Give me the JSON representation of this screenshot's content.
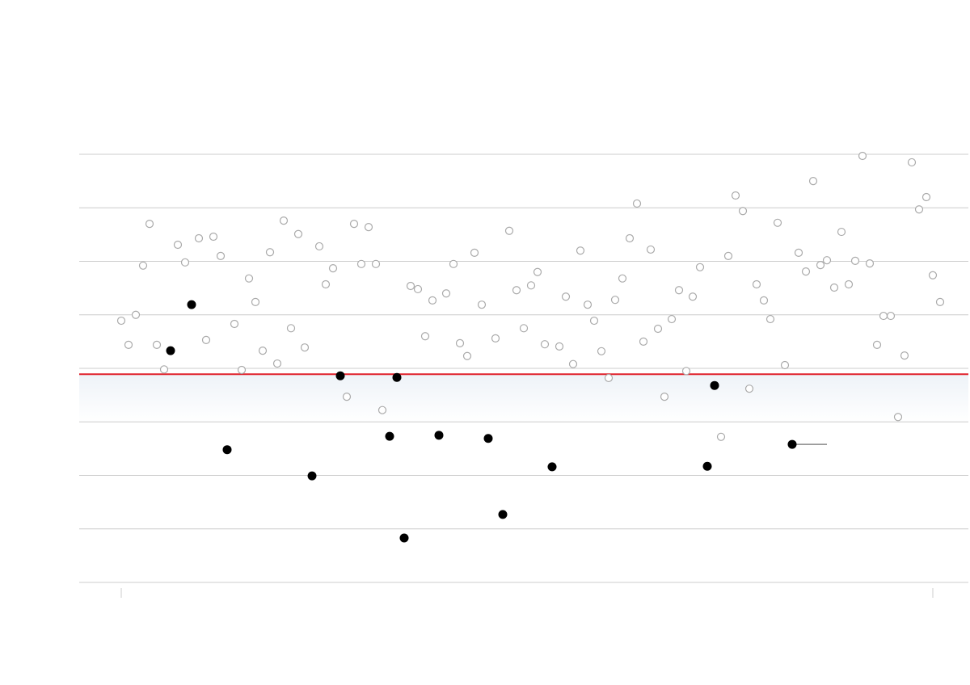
{
  "chart_data": {
    "type": "scatter",
    "xlim": [
      -52,
      1048
    ],
    "xticks": [
      0,
      1004
    ],
    "ylim": [
      0,
      80
    ],
    "yticks": [
      0,
      10,
      20,
      30,
      40,
      50,
      60,
      70,
      80
    ],
    "grid": true,
    "threshold": 38.9,
    "threshold_color": "#e0202a",
    "series": [
      {
        "color": "#aaaaaa",
        "hollow": true,
        "x": [
          0,
          9,
          18,
          27,
          35,
          44,
          53,
          70,
          79,
          96,
          105,
          114,
          123,
          140,
          149,
          158,
          166,
          175,
          184,
          193,
          201,
          210,
          219,
          227,
          245,
          253,
          262,
          279,
          288,
          297,
          306,
          315,
          323,
          358,
          367,
          376,
          385,
          402,
          411,
          419,
          428,
          437,
          446,
          463,
          480,
          489,
          498,
          507,
          515,
          524,
          542,
          550,
          559,
          568,
          577,
          585,
          594,
          603,
          611,
          620,
          629,
          638,
          646,
          655,
          664,
          672,
          681,
          690,
          699,
          707,
          716,
          742,
          751,
          760,
          769,
          777,
          786,
          795,
          803,
          812,
          821,
          838,
          847,
          856,
          865,
          873,
          882,
          891,
          900,
          908,
          917,
          926,
          935,
          943,
          952,
          961,
          969,
          978,
          987,
          996,
          1004,
          1013
        ],
        "values": [
          48.9,
          44.4,
          50.0,
          59.2,
          67.0,
          44.4,
          39.8,
          63.1,
          59.8,
          64.3,
          45.3,
          64.6,
          61.0,
          48.3,
          39.7,
          56.8,
          52.4,
          43.3,
          61.7,
          40.9,
          67.6,
          47.5,
          65.1,
          43.9,
          62.8,
          55.7,
          58.7,
          34.7,
          67.0,
          59.5,
          66.4,
          59.5,
          32.2,
          55.4,
          54.8,
          46.0,
          52.7,
          54.0,
          59.5,
          44.7,
          42.3,
          61.6,
          51.9,
          45.6,
          65.7,
          54.6,
          47.5,
          55.5,
          58.0,
          44.5,
          44.1,
          53.4,
          40.8,
          62.0,
          51.9,
          48.9,
          43.2,
          38.2,
          52.8,
          56.8,
          64.3,
          70.8,
          45.0,
          62.2,
          47.4,
          34.7,
          49.2,
          54.6,
          39.5,
          53.4,
          58.9,
          27.2,
          61.0,
          72.3,
          69.4,
          36.2,
          55.7,
          52.7,
          49.2,
          67.2,
          40.6,
          61.6,
          58.1,
          75.0,
          59.3,
          60.2,
          55.1,
          65.5,
          55.7,
          60.1,
          79.7,
          59.6,
          44.4,
          49.8,
          49.8,
          30.9,
          42.4,
          78.5,
          69.7,
          72.0,
          57.4,
          52.4
        ]
      },
      {
        "color": "#000000",
        "hollow": false,
        "x": [
          61,
          87,
          131,
          236,
          271,
          332,
          341,
          350,
          393,
          454,
          472,
          533,
          725,
          734,
          830
        ],
        "values": [
          43.3,
          51.9,
          24.8,
          19.9,
          38.6,
          27.3,
          38.3,
          8.3,
          27.5,
          26.9,
          12.7,
          21.6,
          21.7,
          36.8,
          25.8
        ]
      }
    ]
  }
}
